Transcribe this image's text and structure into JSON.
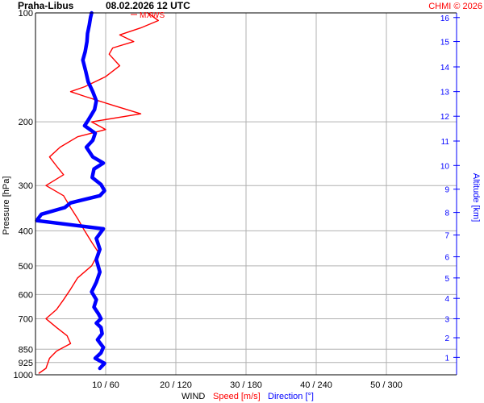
{
  "header": {
    "station": "Praha-Libus",
    "datetime": "08.02.2026 12 UTC",
    "credit": "CHMI © 2026",
    "maxwind_label": "MXWS"
  },
  "footer": {
    "wind_label": "WIND",
    "speed_label": "Speed [m/s]",
    "direction_label": "Direction [°]"
  },
  "colors": {
    "speed": "#ff0000",
    "direction": "#0000ff",
    "grid": "#b0b0b0",
    "axis": "#000000"
  },
  "chart_data": {
    "type": "line",
    "ylabel_left": "Pressure [hPa]",
    "ylabel_right": "Altitude [km]",
    "pressure_ticks": [
      100,
      200,
      300,
      400,
      500,
      600,
      700,
      850,
      925,
      1000
    ],
    "pressure_range": [
      1000,
      100
    ],
    "pressure_scale": "log",
    "altitude_ticks": [
      1,
      2,
      3,
      4,
      5,
      6,
      7,
      8,
      9,
      10,
      11,
      12,
      13,
      14,
      15,
      16
    ],
    "x_ticks": [
      "10 / 60",
      "20 / 120",
      "30 / 180",
      "40 / 240",
      "50 / 300"
    ],
    "speed_range": [
      0,
      60
    ],
    "direction_range": [
      0,
      360
    ],
    "grid": true,
    "series": [
      {
        "name": "Speed [m/s]",
        "axis": "speed",
        "points": [
          [
            100,
            16
          ],
          [
            105,
            17.5
          ],
          [
            110,
            15
          ],
          [
            115,
            12
          ],
          [
            120,
            14
          ],
          [
            125,
            11
          ],
          [
            130,
            10.5
          ],
          [
            140,
            12
          ],
          [
            150,
            10
          ],
          [
            160,
            7
          ],
          [
            165,
            5
          ],
          [
            170,
            7
          ],
          [
            180,
            11
          ],
          [
            190,
            15
          ],
          [
            200,
            8
          ],
          [
            210,
            10
          ],
          [
            220,
            6
          ],
          [
            235,
            3.5
          ],
          [
            250,
            2
          ],
          [
            265,
            3
          ],
          [
            280,
            4
          ],
          [
            300,
            1.5
          ],
          [
            320,
            4
          ],
          [
            345,
            5
          ],
          [
            370,
            6
          ],
          [
            400,
            7
          ],
          [
            430,
            8
          ],
          [
            460,
            9
          ],
          [
            500,
            8
          ],
          [
            540,
            6
          ],
          [
            580,
            5
          ],
          [
            620,
            4
          ],
          [
            660,
            3
          ],
          [
            700,
            1.5
          ],
          [
            740,
            3
          ],
          [
            780,
            4.5
          ],
          [
            820,
            5
          ],
          [
            860,
            3
          ],
          [
            900,
            2
          ],
          [
            960,
            1.5
          ],
          [
            990,
            0.5
          ]
        ]
      },
      {
        "name": "Direction [°]",
        "axis": "direction",
        "points": [
          [
            100,
            48
          ],
          [
            103,
            47
          ],
          [
            108,
            46
          ],
          [
            114,
            44.5
          ],
          [
            120,
            44
          ],
          [
            128,
            42.5
          ],
          [
            135,
            40.5
          ],
          [
            145,
            43
          ],
          [
            155,
            45
          ],
          [
            165,
            49
          ],
          [
            175,
            52
          ],
          [
            185,
            50.5
          ],
          [
            198,
            45
          ],
          [
            205,
            42
          ],
          [
            215,
            51
          ],
          [
            225,
            49
          ],
          [
            235,
            43.5
          ],
          [
            250,
            49
          ],
          [
            260,
            58
          ],
          [
            270,
            50
          ],
          [
            285,
            48.5
          ],
          [
            298,
            56
          ],
          [
            310,
            59
          ],
          [
            320,
            55
          ],
          [
            335,
            30
          ],
          [
            345,
            25
          ],
          [
            360,
            5
          ],
          [
            375,
            1
          ],
          [
            395,
            58
          ],
          [
            420,
            52
          ],
          [
            450,
            55
          ],
          [
            480,
            52
          ],
          [
            520,
            55
          ],
          [
            555,
            52
          ],
          [
            590,
            48
          ],
          [
            620,
            52
          ],
          [
            650,
            50
          ],
          [
            680,
            54
          ],
          [
            700,
            56
          ],
          [
            720,
            52
          ],
          [
            740,
            56
          ],
          [
            770,
            57
          ],
          [
            800,
            53
          ],
          [
            840,
            58
          ],
          [
            870,
            56
          ],
          [
            900,
            51
          ],
          [
            930,
            59
          ],
          [
            960,
            55
          ]
        ]
      }
    ]
  }
}
